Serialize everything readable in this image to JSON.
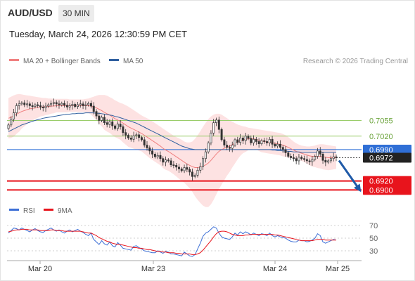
{
  "header": {
    "symbol": "AUD/USD",
    "timeframe": "30 MIN",
    "datetime": "Tuesday, March 24, 2026 12:30:59 PM CET"
  },
  "colors": {
    "ma20": "#f08080",
    "bollinger_fill": "#fde2e2",
    "ma50": "#2f5f9f",
    "resistance_green": "#9acd6a",
    "current_blue": "#2f6fd6",
    "support_red": "#e8141c",
    "price_box": "#222222",
    "candle": "#333333",
    "rsi": "#3c6fd6",
    "rsi_ma": "#e8141c",
    "forecast_arrow": "#1f5aa8"
  },
  "chart_data": [
    {
      "type": "line",
      "title": "AUD/USD 30 MIN",
      "legend": [
        "MA 20 + Bollinger Bands",
        "MA 50"
      ],
      "legend_position": "top-left",
      "copyright": "Research © 2026 Trading Central",
      "x_ticks": [
        "Mar 20",
        "Mar 23",
        "Mar 24",
        "Mar 25"
      ],
      "y_range": [
        0.6885,
        0.7145
      ],
      "levels": {
        "resistance_2": 0.7055,
        "resistance_1": 0.702,
        "pivot": 0.699,
        "current_price": 0.6972,
        "support_1": 0.692,
        "support_2": 0.69
      },
      "level_labels": [
        "0.7055",
        "0.7020",
        "0.6990",
        "0.6972",
        "0.6920",
        "0.6900"
      ],
      "close": [
        0.7045,
        0.7058,
        0.7072,
        0.7088,
        0.7092,
        0.7094,
        0.709,
        0.7092,
        0.7088,
        0.7086,
        0.709,
        0.7088,
        0.7085,
        0.7083,
        0.7087,
        0.709,
        0.7093,
        0.7095,
        0.7092,
        0.709,
        0.7093,
        0.7089,
        0.7085,
        0.7088,
        0.7091,
        0.7086,
        0.709,
        0.7092,
        0.7088,
        0.709,
        0.7093,
        0.7087,
        0.7075,
        0.7065,
        0.7055,
        0.7062,
        0.705,
        0.7046,
        0.7052,
        0.7043,
        0.7037,
        0.7047,
        0.7041,
        0.7028,
        0.7022,
        0.7016,
        0.7013,
        0.7021,
        0.7023,
        0.7017,
        0.7012,
        0.7,
        0.6994,
        0.6987,
        0.698,
        0.6974,
        0.6977,
        0.697,
        0.6962,
        0.6967,
        0.6965,
        0.6956,
        0.6955,
        0.6951,
        0.6947,
        0.6943,
        0.695,
        0.6946,
        0.694,
        0.693,
        0.6933,
        0.6944,
        0.6952,
        0.697,
        0.6985,
        0.7005,
        0.7027,
        0.705,
        0.7056,
        0.7035,
        0.7012,
        0.7,
        0.6995,
        0.6993,
        0.7,
        0.7012,
        0.7006,
        0.7016,
        0.701,
        0.702,
        0.7015,
        0.7005,
        0.7013,
        0.7008,
        0.7003,
        0.701,
        0.7008,
        0.7005,
        0.7013,
        0.7002,
        0.6998,
        0.7002,
        0.6995,
        0.699,
        0.6983,
        0.6975,
        0.6972,
        0.697,
        0.6965,
        0.6973,
        0.697,
        0.6968,
        0.6965,
        0.6963,
        0.6968,
        0.6975,
        0.6987,
        0.698,
        0.6966,
        0.6962,
        0.6965,
        0.697,
        0.6974,
        0.6972
      ],
      "ma20": [
        0.706,
        0.7062,
        0.7065,
        0.7069,
        0.7072,
        0.7075,
        0.7077,
        0.7079,
        0.7081,
        0.7082,
        0.7083,
        0.7084,
        0.7085,
        0.7085,
        0.7086,
        0.7086,
        0.7087,
        0.7087,
        0.7088,
        0.7088,
        0.7088,
        0.7088,
        0.7088,
        0.7088,
        0.7088,
        0.7088,
        0.7088,
        0.7088,
        0.7088,
        0.7088,
        0.7088,
        0.7087,
        0.7085,
        0.7083,
        0.708,
        0.7077,
        0.7073,
        0.707,
        0.7067,
        0.7063,
        0.7059,
        0.7056,
        0.7053,
        0.7049,
        0.7045,
        0.7041,
        0.7038,
        0.7035,
        0.7032,
        0.7029,
        0.7026,
        0.7022,
        0.7018,
        0.7014,
        0.701,
        0.7006,
        0.7002,
        0.6998,
        0.6993,
        0.6989,
        0.6986,
        0.6982,
        0.6978,
        0.6974,
        0.697,
        0.6966,
        0.6962,
        0.6958,
        0.6955,
        0.6952,
        0.695,
        0.695,
        0.6951,
        0.6953,
        0.6956,
        0.696,
        0.6966,
        0.6973,
        0.698,
        0.6986,
        0.699,
        0.6993,
        0.6996,
        0.6998,
        0.7001,
        0.7004,
        0.7007,
        0.701,
        0.7012,
        0.7013,
        0.7014,
        0.7014,
        0.7014,
        0.7013,
        0.7011,
        0.7009,
        0.7008,
        0.7007,
        0.7006,
        0.7005,
        0.7004,
        0.7003,
        0.7002,
        0.7,
        0.6998,
        0.6995,
        0.6992,
        0.6989,
        0.6986,
        0.6984,
        0.6982,
        0.698,
        0.6978,
        0.6976,
        0.6975,
        0.6975,
        0.6975,
        0.6975,
        0.6974,
        0.6973,
        0.6972,
        0.6972,
        0.6972,
        0.6972
      ],
      "ma50": [
        0.703,
        0.7033,
        0.7036,
        0.7039,
        0.7042,
        0.7045,
        0.7047,
        0.7049,
        0.7051,
        0.7053,
        0.7055,
        0.7057,
        0.7058,
        0.706,
        0.7061,
        0.7062,
        0.7063,
        0.7064,
        0.7065,
        0.7066,
        0.7067,
        0.7068,
        0.7069,
        0.7069,
        0.707,
        0.707,
        0.7071,
        0.7071,
        0.7071,
        0.7072,
        0.7072,
        0.7072,
        0.7072,
        0.7071,
        0.7071,
        0.707,
        0.7069,
        0.7068,
        0.7067,
        0.7066,
        0.7064,
        0.7063,
        0.7061,
        0.7059,
        0.7057,
        0.7055,
        0.7053,
        0.7051,
        0.7049,
        0.7046,
        0.7043,
        0.704,
        0.7037,
        0.7034,
        0.7031,
        0.7028,
        0.7025,
        0.7022,
        0.7019,
        0.7016,
        0.7013,
        0.701,
        0.7007,
        0.7004,
        0.7001,
        0.6998,
        0.6996,
        0.6994,
        0.6992,
        0.6991,
        0.699,
        0.699,
        0.699,
        0.699,
        0.699,
        0.699,
        0.699,
        0.699,
        0.699,
        0.699,
        0.699,
        0.699,
        0.699,
        0.699,
        0.699,
        0.699,
        0.699,
        0.699,
        0.699,
        0.699,
        0.699,
        0.699,
        0.699,
        0.699,
        0.699,
        0.699,
        0.699,
        0.699,
        0.699,
        0.6989,
        0.6989,
        0.6988,
        0.6988,
        0.6987,
        0.6987,
        0.6986,
        0.6986,
        0.6985,
        0.6985,
        0.6985,
        0.6984,
        0.6984,
        0.6984,
        0.6984,
        0.6984,
        0.6984,
        0.6984,
        0.6984,
        0.6984,
        0.6984,
        0.6984,
        0.6984,
        0.6984,
        0.6984
      ],
      "bollinger_upper": [
        0.7105,
        0.7108,
        0.7111,
        0.7113,
        0.7114,
        0.7113,
        0.7112,
        0.7111,
        0.711,
        0.7109,
        0.7108,
        0.7107,
        0.7106,
        0.7105,
        0.7105,
        0.7104,
        0.7104,
        0.7103,
        0.7103,
        0.7103,
        0.7103,
        0.7103,
        0.7103,
        0.7102,
        0.7102,
        0.7102,
        0.7102,
        0.7102,
        0.7102,
        0.7103,
        0.7104,
        0.7106,
        0.7108,
        0.711,
        0.7112,
        0.7112,
        0.7112,
        0.711,
        0.7107,
        0.7104,
        0.71,
        0.7097,
        0.7094,
        0.7092,
        0.7089,
        0.7086,
        0.7082,
        0.7078,
        0.7074,
        0.707,
        0.7066,
        0.7063,
        0.706,
        0.7057,
        0.7053,
        0.7049,
        0.7045,
        0.7041,
        0.7037,
        0.7033,
        0.7029,
        0.7025,
        0.7021,
        0.7018,
        0.7015,
        0.7012,
        0.7008,
        0.7006,
        0.7006,
        0.7008,
        0.7014,
        0.7022,
        0.7031,
        0.7041,
        0.705,
        0.7058,
        0.7064,
        0.7068,
        0.707,
        0.707,
        0.7068,
        0.7064,
        0.706,
        0.7056,
        0.7052,
        0.7049,
        0.7046,
        0.7044,
        0.7042,
        0.7041,
        0.7039,
        0.7038,
        0.7037,
        0.7036,
        0.7035,
        0.7034,
        0.7033,
        0.7032,
        0.7031,
        0.703,
        0.7029,
        0.7028,
        0.7027,
        0.7025,
        0.7022,
        0.7018,
        0.7013,
        0.7008,
        0.7004,
        0.7001,
        0.6999,
        0.6998,
        0.6997,
        0.6997,
        0.6998,
        0.6999,
        0.7001,
        0.7002,
        0.7002,
        0.7001,
        0.7,
        0.6999,
        0.6998,
        0.6997
      ],
      "bollinger_lower": [
        0.7015,
        0.7016,
        0.7019,
        0.7025,
        0.703,
        0.7037,
        0.7042,
        0.7047,
        0.7052,
        0.7055,
        0.7058,
        0.7061,
        0.7064,
        0.7065,
        0.7067,
        0.7068,
        0.707,
        0.7071,
        0.7073,
        0.7073,
        0.7073,
        0.7073,
        0.7073,
        0.7074,
        0.7074,
        0.7074,
        0.7074,
        0.7074,
        0.7074,
        0.7073,
        0.7072,
        0.7068,
        0.7062,
        0.7056,
        0.7048,
        0.7042,
        0.7034,
        0.703,
        0.7027,
        0.7022,
        0.7018,
        0.7015,
        0.7012,
        0.7006,
        0.7001,
        0.6996,
        0.6994,
        0.6992,
        0.699,
        0.6988,
        0.6986,
        0.6981,
        0.6976,
        0.6971,
        0.6967,
        0.6963,
        0.6959,
        0.6955,
        0.6949,
        0.6945,
        0.6943,
        0.6939,
        0.6935,
        0.693,
        0.6925,
        0.692,
        0.6916,
        0.691,
        0.6904,
        0.6896,
        0.6886,
        0.6878,
        0.6871,
        0.6865,
        0.6862,
        0.6862,
        0.6868,
        0.6878,
        0.689,
        0.6902,
        0.6912,
        0.6922,
        0.6932,
        0.694,
        0.695,
        0.6959,
        0.6968,
        0.6976,
        0.6982,
        0.6985,
        0.6989,
        0.699,
        0.6991,
        0.699,
        0.6987,
        0.6984,
        0.6983,
        0.6982,
        0.6981,
        0.698,
        0.6979,
        0.6978,
        0.6977,
        0.6975,
        0.6974,
        0.6972,
        0.6971,
        0.697,
        0.6968,
        0.6967,
        0.6965,
        0.6962,
        0.6959,
        0.6955,
        0.6952,
        0.6951,
        0.6949,
        0.6948,
        0.6946,
        0.6945,
        0.6944,
        0.6945,
        0.6946,
        0.6947
      ],
      "forecast": {
        "direction": "down",
        "from": 0.6972,
        "to": 0.69
      }
    },
    {
      "type": "line",
      "title": "RSI",
      "legend": [
        "RSI",
        "9MA"
      ],
      "legend_position": "top-left",
      "y_ticks": [
        70,
        50,
        30
      ],
      "y_range": [
        20,
        80
      ],
      "rsi": [
        58,
        62,
        66,
        65,
        63,
        66,
        64,
        62,
        60,
        63,
        65,
        62,
        60,
        59,
        62,
        64,
        66,
        63,
        61,
        63,
        60,
        58,
        61,
        63,
        60,
        62,
        64,
        61,
        59,
        56,
        54,
        58,
        48,
        44,
        40,
        46,
        41,
        39,
        44,
        38,
        36,
        43,
        39,
        34,
        33,
        32,
        31,
        37,
        38,
        35,
        33,
        30,
        29,
        28,
        27,
        27,
        30,
        28,
        26,
        29,
        28,
        25,
        25,
        24,
        23,
        22,
        28,
        25,
        22,
        21,
        24,
        33,
        42,
        53,
        58,
        60,
        64,
        68,
        66,
        58,
        52,
        50,
        49,
        48,
        52,
        58,
        55,
        60,
        57,
        60,
        58,
        55,
        58,
        56,
        54,
        57,
        56,
        54,
        58,
        54,
        52,
        54,
        52,
        51,
        50,
        47,
        45,
        44,
        44,
        47,
        46,
        46,
        44,
        45,
        47,
        50,
        57,
        54,
        44,
        42,
        44,
        46,
        48,
        47
      ],
      "rsi_ma": [
        60,
        61,
        62,
        63,
        63,
        64,
        64,
        64,
        63,
        63,
        63,
        63,
        62,
        62,
        62,
        62,
        63,
        63,
        62,
        62,
        62,
        61,
        61,
        61,
        61,
        61,
        61,
        61,
        60,
        59,
        58,
        58,
        56,
        54,
        51,
        49,
        47,
        45,
        44,
        42,
        41,
        40,
        40,
        39,
        38,
        37,
        36,
        35,
        35,
        34,
        34,
        33,
        32,
        32,
        31,
        30,
        29,
        29,
        28,
        28,
        27,
        27,
        27,
        26,
        26,
        25,
        25,
        25,
        25,
        24,
        24,
        25,
        27,
        31,
        36,
        41,
        46,
        52,
        57,
        60,
        61,
        61,
        60,
        58,
        56,
        55,
        54,
        54,
        54,
        55,
        55,
        56,
        56,
        56,
        56,
        56,
        56,
        56,
        56,
        56,
        55,
        55,
        54,
        53,
        52,
        51,
        50,
        49,
        48,
        47,
        46,
        46,
        46,
        46,
        46,
        47,
        48,
        48,
        48,
        47,
        47,
        47,
        47,
        47
      ]
    }
  ]
}
